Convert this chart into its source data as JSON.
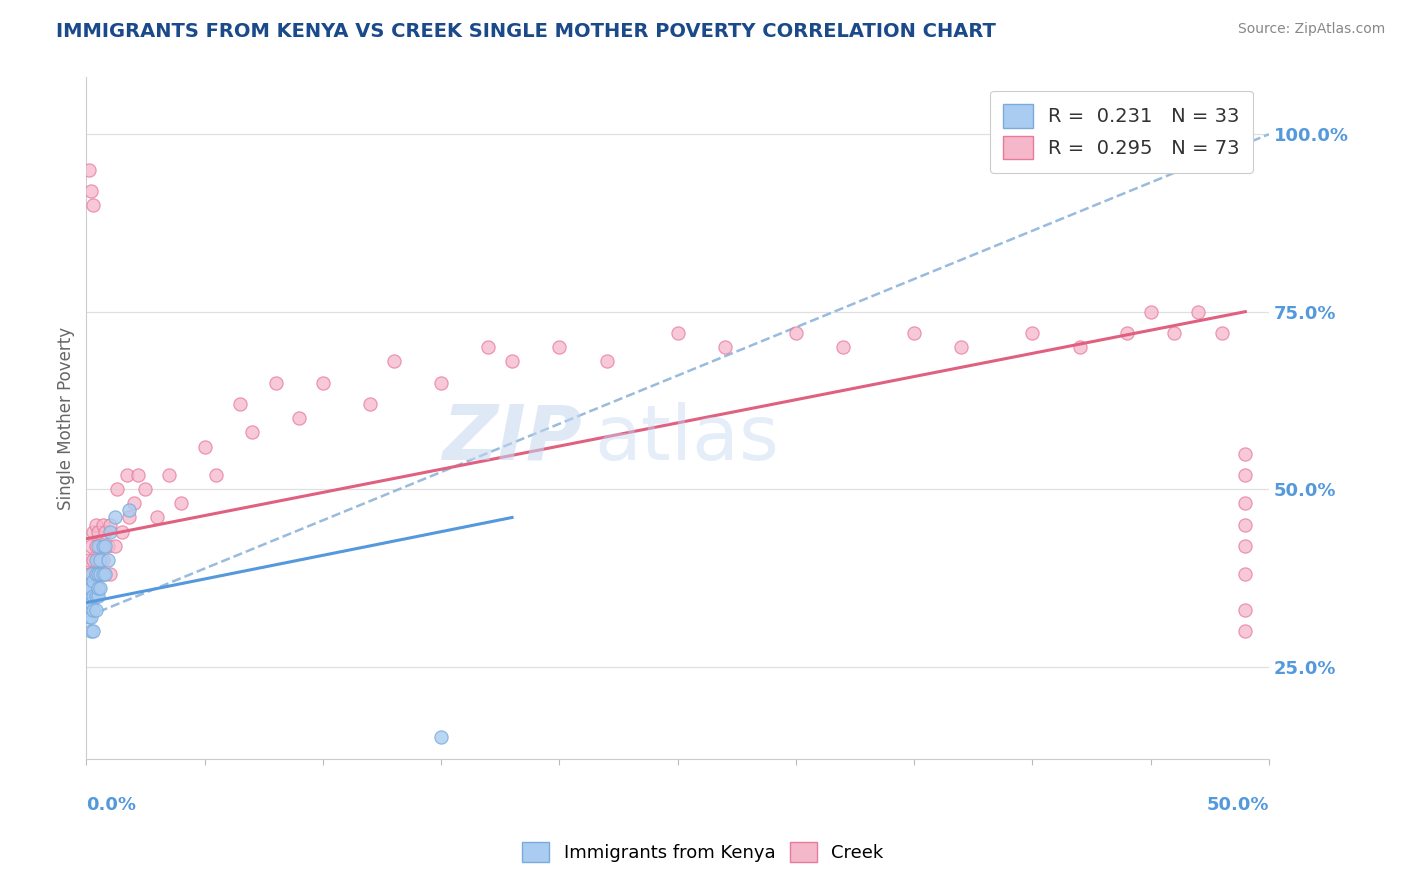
{
  "title": "IMMIGRANTS FROM KENYA VS CREEK SINGLE MOTHER POVERTY CORRELATION CHART",
  "source": "Source: ZipAtlas.com",
  "ylabel": "Single Mother Poverty",
  "ylabel_right_ticks": [
    0.25,
    0.5,
    0.75,
    1.0
  ],
  "ylabel_right_labels": [
    "25.0%",
    "50.0%",
    "75.0%",
    "100.0%"
  ],
  "watermark_zip": "ZIP",
  "watermark_atlas": "atlas",
  "legend_blue_r": "R = 0.231",
  "legend_blue_n": "N = 33",
  "legend_pink_r": "R = 0.295",
  "legend_pink_n": "N = 73",
  "blue_color": "#aaccf0",
  "blue_edge": "#7aabdc",
  "pink_color": "#f5b8cb",
  "pink_edge": "#e87a9a",
  "trend_blue_color": "#5599dd",
  "trend_pink_color": "#e06080",
  "trend_grey_color": "#99bbdd",
  "title_color": "#1a4a8a",
  "source_color": "#888888",
  "axis_label_color": "#5599dd",
  "xlim": [
    0.0,
    0.5
  ],
  "ylim": [
    0.12,
    1.08
  ],
  "blue_x": [
    0.001,
    0.001,
    0.001,
    0.001,
    0.002,
    0.002,
    0.002,
    0.002,
    0.002,
    0.003,
    0.003,
    0.003,
    0.003,
    0.004,
    0.004,
    0.004,
    0.004,
    0.005,
    0.005,
    0.005,
    0.005,
    0.006,
    0.006,
    0.006,
    0.007,
    0.007,
    0.008,
    0.008,
    0.009,
    0.01,
    0.012,
    0.018,
    0.15
  ],
  "blue_y": [
    0.32,
    0.33,
    0.35,
    0.36,
    0.3,
    0.32,
    0.34,
    0.36,
    0.38,
    0.3,
    0.33,
    0.35,
    0.37,
    0.33,
    0.35,
    0.38,
    0.4,
    0.35,
    0.36,
    0.38,
    0.42,
    0.36,
    0.38,
    0.4,
    0.38,
    0.42,
    0.38,
    0.42,
    0.4,
    0.44,
    0.46,
    0.47,
    0.15
  ],
  "pink_x": [
    0.001,
    0.001,
    0.001,
    0.002,
    0.002,
    0.002,
    0.002,
    0.003,
    0.003,
    0.003,
    0.003,
    0.003,
    0.004,
    0.004,
    0.004,
    0.005,
    0.005,
    0.005,
    0.006,
    0.006,
    0.007,
    0.007,
    0.008,
    0.008,
    0.009,
    0.01,
    0.01,
    0.012,
    0.013,
    0.015,
    0.017,
    0.018,
    0.02,
    0.022,
    0.025,
    0.03,
    0.035,
    0.04,
    0.05,
    0.055,
    0.065,
    0.07,
    0.08,
    0.09,
    0.1,
    0.12,
    0.13,
    0.15,
    0.17,
    0.18,
    0.2,
    0.22,
    0.25,
    0.27,
    0.3,
    0.32,
    0.35,
    0.37,
    0.4,
    0.42,
    0.44,
    0.45,
    0.46,
    0.47,
    0.48,
    0.49,
    0.49,
    0.49,
    0.49,
    0.49,
    0.49,
    0.49,
    0.49
  ],
  "pink_y": [
    0.38,
    0.4,
    0.95,
    0.35,
    0.38,
    0.42,
    0.92,
    0.36,
    0.38,
    0.4,
    0.44,
    0.9,
    0.38,
    0.42,
    0.45,
    0.36,
    0.4,
    0.44,
    0.38,
    0.42,
    0.4,
    0.45,
    0.38,
    0.44,
    0.42,
    0.38,
    0.45,
    0.42,
    0.5,
    0.44,
    0.52,
    0.46,
    0.48,
    0.52,
    0.5,
    0.46,
    0.52,
    0.48,
    0.56,
    0.52,
    0.62,
    0.58,
    0.65,
    0.6,
    0.65,
    0.62,
    0.68,
    0.65,
    0.7,
    0.68,
    0.7,
    0.68,
    0.72,
    0.7,
    0.72,
    0.7,
    0.72,
    0.7,
    0.72,
    0.7,
    0.72,
    0.75,
    0.72,
    0.75,
    0.72,
    0.38,
    0.42,
    0.45,
    0.48,
    0.52,
    0.55,
    0.3,
    0.33
  ],
  "fig_width": 14.06,
  "fig_height": 8.92,
  "dpi": 100
}
